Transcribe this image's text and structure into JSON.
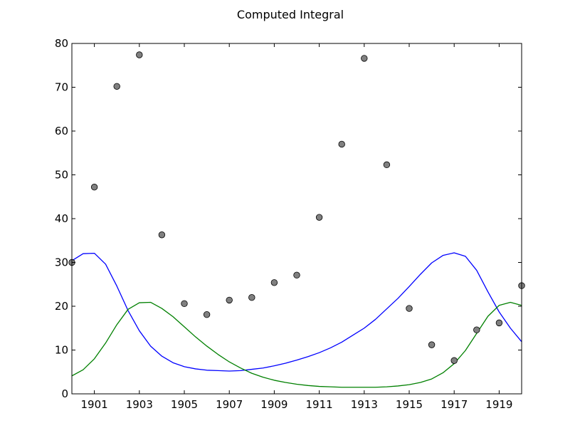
{
  "chart_data": {
    "type": "scatter",
    "title": "Computed Integral",
    "xlabel": "",
    "ylabel": "",
    "xlim": [
      1900,
      1920
    ],
    "ylim": [
      0,
      80
    ],
    "xticks": [
      1901,
      1903,
      1905,
      1907,
      1909,
      1911,
      1913,
      1915,
      1917,
      1919
    ],
    "yticks": [
      0,
      10,
      20,
      30,
      40,
      50,
      60,
      70,
      80
    ],
    "grid": false,
    "colors": {
      "points": "#808080",
      "curve1": "#0000ff",
      "curve2": "#008000",
      "axes": "#000000"
    },
    "points": {
      "x": [
        1900,
        1901,
        1902,
        1903,
        1904,
        1905,
        1906,
        1907,
        1908,
        1909,
        1910,
        1911,
        1912,
        1913,
        1914,
        1915,
        1916,
        1917,
        1918,
        1919,
        1920
      ],
      "y": [
        30,
        47.2,
        70.2,
        77.4,
        36.3,
        20.6,
        18.1,
        21.4,
        22.0,
        25.4,
        27.1,
        40.3,
        57.0,
        76.6,
        52.3,
        19.5,
        11.2,
        7.6,
        14.6,
        16.2,
        24.7
      ]
    },
    "series": [
      {
        "x": [
          1900,
          1900.5,
          1901,
          1901.5,
          1902,
          1902.5,
          1903,
          1903.5,
          1904,
          1904.5,
          1905,
          1905.5,
          1906,
          1906.5,
          1907,
          1907.5,
          1908,
          1908.5,
          1909,
          1909.5,
          1910,
          1910.5,
          1911,
          1911.5,
          1912,
          1912.5,
          1913,
          1913.5,
          1914,
          1914.5,
          1915,
          1915.5,
          1916,
          1916.5,
          1917,
          1917.5,
          1918,
          1918.5,
          1919,
          1919.5,
          1920
        ],
        "y": [
          30.4,
          32.0,
          32.1,
          29.6,
          24.6,
          19.0,
          14.4,
          10.9,
          8.6,
          7.1,
          6.2,
          5.7,
          5.4,
          5.3,
          5.2,
          5.3,
          5.6,
          5.9,
          6.4,
          7.0,
          7.7,
          8.5,
          9.4,
          10.5,
          11.8,
          13.4,
          15.0,
          17.0,
          19.4,
          21.8,
          24.5,
          27.3,
          29.9,
          31.6,
          32.2,
          31.4,
          28.2,
          23.3,
          18.7,
          15.0,
          11.9
        ]
      },
      {
        "x": [
          1900,
          1900.5,
          1901,
          1901.5,
          1902,
          1902.5,
          1903,
          1903.5,
          1904,
          1904.5,
          1905,
          1905.5,
          1906,
          1906.5,
          1907,
          1907.5,
          1908,
          1908.5,
          1909,
          1909.5,
          1910,
          1910.5,
          1911,
          1911.5,
          1912,
          1912.5,
          1913,
          1913.5,
          1914,
          1914.5,
          1915,
          1915.5,
          1916,
          1916.5,
          1917,
          1917.5,
          1918,
          1918.5,
          1919,
          1919.5,
          1920
        ],
        "y": [
          4.1,
          5.5,
          8.0,
          11.6,
          15.8,
          19.3,
          20.8,
          20.9,
          19.5,
          17.6,
          15.3,
          13.0,
          10.9,
          9.0,
          7.3,
          5.9,
          4.7,
          3.8,
          3.1,
          2.6,
          2.2,
          1.9,
          1.7,
          1.6,
          1.5,
          1.5,
          1.5,
          1.5,
          1.6,
          1.8,
          2.1,
          2.6,
          3.4,
          4.8,
          6.9,
          9.9,
          13.8,
          17.7,
          20.2,
          20.9,
          20.2
        ]
      }
    ]
  }
}
